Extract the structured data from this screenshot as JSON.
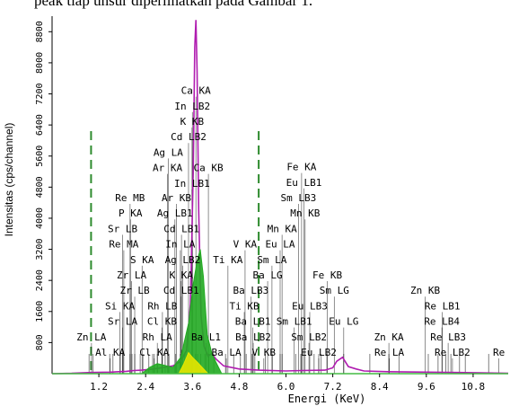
{
  "caption": "peak tiap unsur diperlihatkan pada Gambar 1.",
  "chart_data": {
    "type": "line",
    "title": "",
    "xlabel": "Energi (KeV)",
    "ylabel": "Intensitas (cps/channel)",
    "xlim": [
      0,
      11.7
    ],
    "ylim": [
      0,
      9200
    ],
    "x_ticks": [
      "1.2",
      "2.4",
      "3.6",
      "4.8",
      "6.0",
      "7.2",
      "8.4",
      "9.6",
      "10.8"
    ],
    "x_tick_values": [
      1.2,
      2.4,
      3.6,
      4.8,
      6.0,
      7.2,
      8.4,
      9.6,
      10.8
    ],
    "y_ticks": [
      "800",
      "1600",
      "2400",
      "3200",
      "4000",
      "4800",
      "5600",
      "6400",
      "7200",
      "8000",
      "8800"
    ],
    "y_tick_values": [
      800,
      1600,
      2400,
      3200,
      4000,
      4800,
      5600,
      6400,
      7200,
      8000,
      8800
    ],
    "roi_markers_kev": [
      1.0,
      5.3
    ],
    "colors": {
      "axis": "#000000",
      "baseline": "#44bb44",
      "roi_marker": "#2e8b2e",
      "primary_peak": "#b01cb0",
      "peak_fill": "#22aa22",
      "secondary_fill": "#e6e600",
      "line_marker": "#000000",
      "grid_marker": "#808080"
    },
    "series": [
      {
        "color": "#b01cb0",
        "points": [
          [
            0.0,
            0
          ],
          [
            0.5,
            10
          ],
          [
            1.0,
            30
          ],
          [
            1.5,
            40
          ],
          [
            1.9,
            60
          ],
          [
            2.1,
            80
          ],
          [
            2.3,
            90
          ],
          [
            2.6,
            120
          ],
          [
            2.8,
            150
          ],
          [
            3.1,
            200
          ],
          [
            3.3,
            320
          ],
          [
            3.45,
            600
          ],
          [
            3.55,
            1800
          ],
          [
            3.62,
            5200
          ],
          [
            3.66,
            8400
          ],
          [
            3.69,
            9100
          ],
          [
            3.72,
            7800
          ],
          [
            3.76,
            4200
          ],
          [
            3.82,
            1500
          ],
          [
            3.9,
            700
          ],
          [
            4.0,
            450
          ],
          [
            4.1,
            520
          ],
          [
            4.2,
            380
          ],
          [
            4.4,
            200
          ],
          [
            4.8,
            120
          ],
          [
            5.3,
            90
          ],
          [
            6.0,
            70
          ],
          [
            6.4,
            80
          ],
          [
            7.0,
            90
          ],
          [
            7.2,
            150
          ],
          [
            7.3,
            320
          ],
          [
            7.45,
            420
          ],
          [
            7.6,
            180
          ],
          [
            7.8,
            120
          ],
          [
            8.0,
            70
          ],
          [
            8.6,
            50
          ],
          [
            9.6,
            40
          ],
          [
            10.4,
            30
          ],
          [
            11.0,
            20
          ],
          [
            11.7,
            10
          ]
        ]
      },
      {
        "color": "#22aa22",
        "points": [
          [
            2.3,
            0
          ],
          [
            2.5,
            160
          ],
          [
            2.7,
            260
          ],
          [
            2.9,
            210
          ],
          [
            3.1,
            160
          ],
          [
            3.3,
            420
          ],
          [
            3.5,
            1300
          ],
          [
            3.62,
            2300
          ],
          [
            3.72,
            2900
          ],
          [
            3.8,
            3200
          ],
          [
            3.88,
            2500
          ],
          [
            3.98,
            1000
          ],
          [
            4.1,
            520
          ],
          [
            4.2,
            300
          ],
          [
            4.35,
            0
          ]
        ]
      },
      {
        "color": "#e6e600",
        "points": [
          [
            3.25,
            0
          ],
          [
            3.38,
            260
          ],
          [
            3.5,
            540
          ],
          [
            3.6,
            420
          ],
          [
            3.72,
            300
          ],
          [
            3.85,
            160
          ],
          [
            4.0,
            0
          ]
        ]
      }
    ],
    "line_markers_kev": [
      0.95,
      1.05,
      1.48,
      1.56,
      1.75,
      1.82,
      2.0,
      2.05,
      2.12,
      2.26,
      2.33,
      2.48,
      2.58,
      2.62,
      2.7,
      2.82,
      2.9,
      3.0,
      3.17,
      3.29,
      3.4,
      3.45,
      3.55,
      3.59,
      3.68,
      3.73,
      3.81,
      3.92,
      4.02,
      4.15,
      4.45,
      4.66,
      4.83,
      4.98,
      5.13,
      5.2,
      5.47,
      5.65,
      5.85,
      5.9,
      6.25,
      6.38,
      6.41,
      6.72,
      6.84,
      6.9,
      7.05,
      7.48,
      8.15,
      8.64,
      8.9,
      9.65,
      9.9,
      10.1,
      10.23,
      10.45,
      10.6,
      11.2
    ],
    "peak_labels": [
      {
        "text": "Ca KA",
        "kev": 3.69,
        "level": 4910
      },
      {
        "text": "In LB2",
        "kev": 3.6,
        "level": 4570
      },
      {
        "text": "K KB",
        "kev": 3.59,
        "level": 4230
      },
      {
        "text": "Cd LB2",
        "kev": 3.5,
        "level": 3890
      },
      {
        "text": "Ag LA",
        "kev": 2.98,
        "level": 3550
      },
      {
        "text": "Ar KA",
        "kev": 2.96,
        "level": 3210
      },
      {
        "text": "Ca KB",
        "kev": 4.01,
        "level": 3210
      },
      {
        "text": "In LB1",
        "kev": 3.59,
        "level": 2870
      },
      {
        "text": "Re MB",
        "kev": 2.0,
        "level": 2550
      },
      {
        "text": "Ar KB",
        "kev": 3.19,
        "level": 2550
      },
      {
        "text": "P KA",
        "kev": 2.01,
        "level": 2210
      },
      {
        "text": "Ag LB1",
        "kev": 3.15,
        "level": 2210
      },
      {
        "text": "Sr LB",
        "kev": 1.81,
        "level": 1870
      },
      {
        "text": "Cd LB1",
        "kev": 3.32,
        "level": 1870
      },
      {
        "text": "Re MA",
        "kev": 1.84,
        "level": 1530
      },
      {
        "text": "In LA",
        "kev": 3.29,
        "level": 1530
      },
      {
        "text": "S KA",
        "kev": 2.31,
        "level": 1190
      },
      {
        "text": "Ag LB2",
        "kev": 3.35,
        "level": 1190
      },
      {
        "text": "Zr LA",
        "kev": 2.04,
        "level": 850
      },
      {
        "text": "K KA",
        "kev": 3.31,
        "level": 850
      },
      {
        "text": "Zr LB",
        "kev": 2.12,
        "level": 510
      },
      {
        "text": "Cd LB1",
        "kev": 3.31,
        "level": 510
      },
      {
        "text": "Si KA",
        "kev": 1.74,
        "level": 170
      },
      {
        "text": "Rh LB",
        "kev": 2.83,
        "level": 170
      },
      {
        "text": "Sr LA",
        "kev": 1.81,
        "level": -170
      },
      {
        "text": "Cl KB",
        "kev": 2.82,
        "level": -170
      },
      {
        "text": "Zn LA",
        "kev": 1.01,
        "level": -510
      },
      {
        "text": "Rh LA",
        "kev": 2.7,
        "level": -510
      },
      {
        "text": "Ba L1",
        "kev": 3.95,
        "level": -510
      },
      {
        "text": "Ba LB2",
        "kev": 5.16,
        "level": -510
      },
      {
        "text": "Al KA",
        "kev": 1.49,
        "level": -850
      },
      {
        "text": "Cl KA",
        "kev": 2.62,
        "level": -850
      },
      {
        "text": "Ba LA",
        "kev": 4.47,
        "level": -850
      },
      {
        "text": "V KB",
        "kev": 5.43,
        "level": -850
      },
      {
        "text": "Ti KA",
        "kev": 4.51,
        "level": 1190
      },
      {
        "text": "Ti KB",
        "kev": 4.93,
        "level": 170
      },
      {
        "text": "Ba LB1",
        "kev": 5.15,
        "level": -170
      },
      {
        "text": "Ba LB3",
        "kev": 5.1,
        "level": 510
      },
      {
        "text": "Ba LG",
        "kev": 5.53,
        "level": 850
      },
      {
        "text": "V KA",
        "kev": 4.95,
        "level": 1530
      },
      {
        "text": "Eu LA",
        "kev": 5.85,
        "level": 1530
      },
      {
        "text": "Sm LA",
        "kev": 5.64,
        "level": 1190
      },
      {
        "text": "Mn KA",
        "kev": 5.9,
        "level": 1870
      },
      {
        "text": "Mn KB",
        "kev": 6.49,
        "level": 2210
      },
      {
        "text": "Sm LB3",
        "kev": 6.32,
        "level": 2550
      },
      {
        "text": "Eu LB1",
        "kev": 6.46,
        "level": 2890
      },
      {
        "text": "Fe KA",
        "kev": 6.4,
        "level": 3230
      },
      {
        "text": "Fe KB",
        "kev": 7.06,
        "level": 850
      },
      {
        "text": "Sm LG",
        "kev": 7.24,
        "level": 510
      },
      {
        "text": "Eu LB3",
        "kev": 6.61,
        "level": 170
      },
      {
        "text": "Sm LB1",
        "kev": 6.21,
        "level": -170
      },
      {
        "text": "Eu LG",
        "kev": 7.48,
        "level": -170
      },
      {
        "text": "Sm LB2",
        "kev": 6.59,
        "level": -510
      },
      {
        "text": "Eu LB2",
        "kev": 6.84,
        "level": -850
      },
      {
        "text": "Zn KA",
        "kev": 8.64,
        "level": -510
      },
      {
        "text": "Re LA",
        "kev": 8.65,
        "level": -850
      },
      {
        "text": "Zn KB",
        "kev": 9.57,
        "level": 510
      },
      {
        "text": "Re LB1",
        "kev": 10.01,
        "level": 170
      },
      {
        "text": "Re LB4",
        "kev": 10.0,
        "level": -170
      },
      {
        "text": "Re LB3",
        "kev": 10.16,
        "level": -510
      },
      {
        "text": "Re LB2",
        "kev": 10.27,
        "level": -850
      },
      {
        "text": "Re",
        "kev": 11.46,
        "level": -850
      }
    ]
  }
}
